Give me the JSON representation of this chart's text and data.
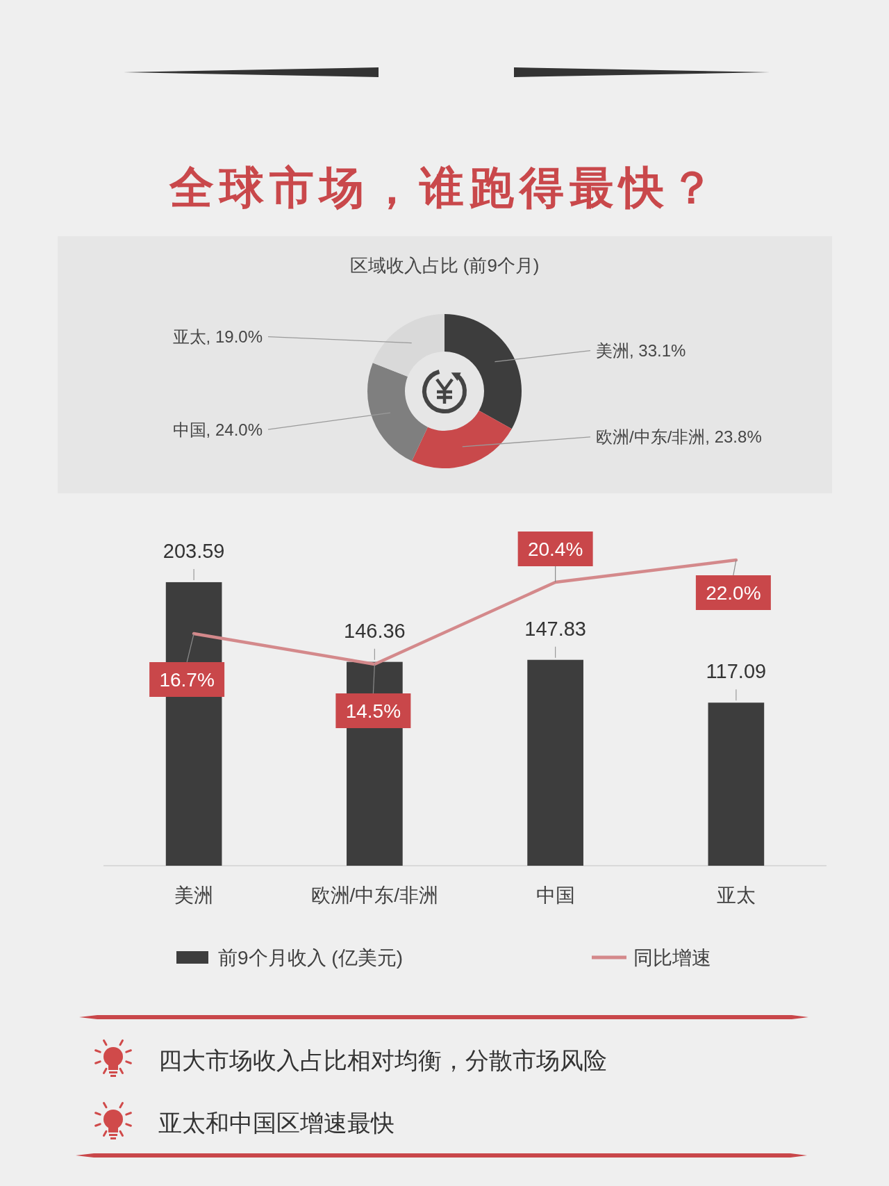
{
  "chart_data": [
    {
      "type": "other",
      "title": "全球市场，谁跑得最快？"
    },
    {
      "type": "donut",
      "title": "区域收入占比 (前9个月)",
      "categories": [
        "美洲",
        "欧洲/中东/非洲",
        "中国",
        "亚太"
      ],
      "values": [
        33.1,
        23.8,
        24.0,
        19.0
      ],
      "colors": [
        "#3d3d3d",
        "#c9494b",
        "#7f7f7f",
        "#d9d9d9"
      ],
      "value_labels": [
        "33.1%",
        "23.8%",
        "24.0%",
        "19.0%"
      ]
    },
    {
      "type": "bar",
      "categories": [
        "美洲",
        "欧洲/中东/非洲",
        "中国",
        "亚太"
      ],
      "series": [
        {
          "name": "前9个月收入 (亿美元)",
          "type": "bar",
          "color": "#3d3d3d",
          "values": [
            203.59,
            146.36,
            147.83,
            117.09
          ],
          "value_labels": [
            "203.59",
            "146.36",
            "147.83",
            "117.09"
          ]
        },
        {
          "name": "同比增速",
          "type": "line",
          "axis": "y2",
          "color": "#d4898b",
          "values": [
            16.7,
            14.5,
            20.4,
            22.0
          ],
          "value_labels": [
            "16.7%",
            "14.5%",
            "20.4%",
            "22.0%"
          ]
        }
      ],
      "legend": "bottom",
      "tick_labels": "x",
      "annotations": [
        "四大市场收入占比相对均衡，分散市场风险",
        "亚太和中国区增速最快"
      ]
    }
  ]
}
